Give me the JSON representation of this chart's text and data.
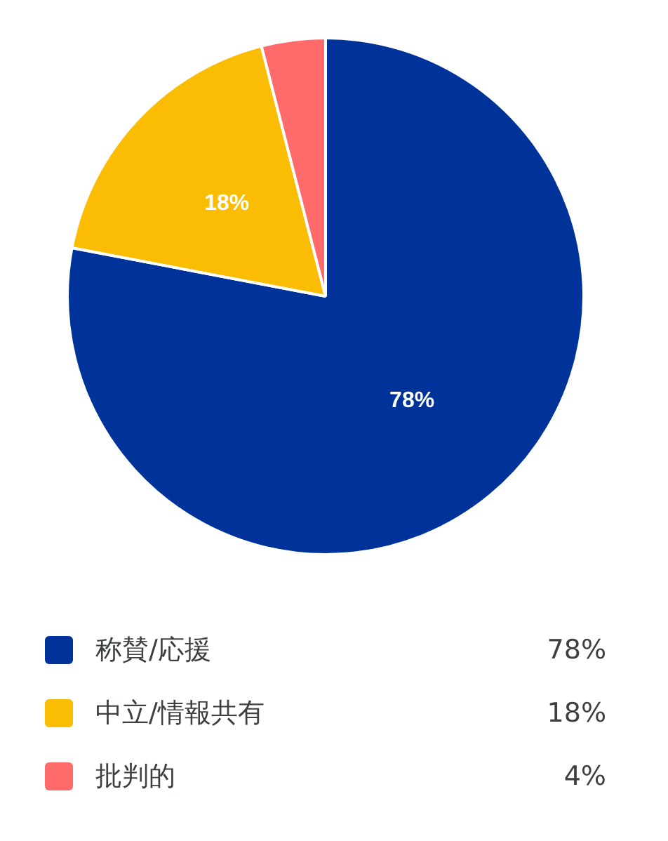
{
  "chart_data": {
    "type": "pie",
    "categories": [
      "称賛/応援",
      "中立/情報共有",
      "批判的"
    ],
    "values": [
      78,
      18,
      4
    ],
    "colors": [
      "#003399",
      "#fbbc04",
      "#ff6b6b"
    ],
    "value_labels": [
      "78%",
      "18%",
      "4%"
    ],
    "legend": "bottom"
  }
}
